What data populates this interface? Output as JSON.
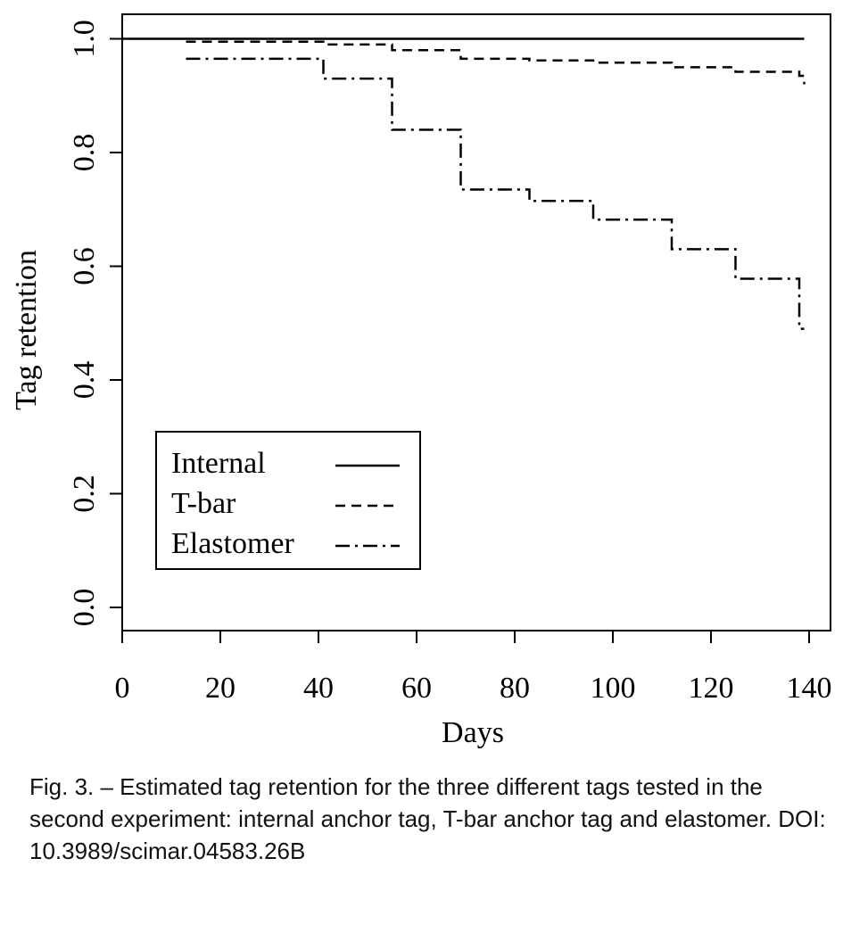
{
  "caption": "Fig. 3. – Estimated tag retention for the three different tags tested in the second experiment: internal anchor tag, T-bar anchor tag and elastomer. DOI: 10.3989/scimar.04583.26B",
  "chart_data": {
    "type": "line",
    "step": true,
    "title": "",
    "xlabel": "Days",
    "ylabel": "Tag retention",
    "xlim": [
      0,
      145
    ],
    "ylim": [
      -0.04,
      1.04
    ],
    "xticks": [
      0,
      20,
      40,
      60,
      80,
      100,
      120,
      140
    ],
    "yticks": [
      0.0,
      0.2,
      0.4,
      0.6,
      0.8,
      1.0
    ],
    "xtick_labels": [
      "0",
      "20",
      "40",
      "60",
      "80",
      "100",
      "120",
      "140"
    ],
    "ytick_labels": [
      "0.0",
      "0.2",
      "0.4",
      "0.6",
      "0.8",
      "1.0"
    ],
    "grid": false,
    "legend_position": "bottom-left",
    "series": [
      {
        "name": "Internal",
        "style": "solid",
        "x": [
          0,
          139
        ],
        "y": [
          1.0,
          1.0
        ]
      },
      {
        "name": "T-bar",
        "style": "dashed",
        "x": [
          13,
          41,
          55,
          69,
          83,
          96,
          112,
          125,
          138,
          139
        ],
        "y": [
          0.995,
          0.99,
          0.98,
          0.965,
          0.962,
          0.958,
          0.95,
          0.942,
          0.935,
          0.92
        ]
      },
      {
        "name": "Elastomer",
        "style": "dashdot",
        "x": [
          13,
          41,
          55,
          69,
          83,
          96,
          112,
          125,
          138,
          139
        ],
        "y": [
          0.965,
          0.93,
          0.84,
          0.735,
          0.715,
          0.682,
          0.63,
          0.578,
          0.49,
          0.49
        ]
      }
    ]
  }
}
